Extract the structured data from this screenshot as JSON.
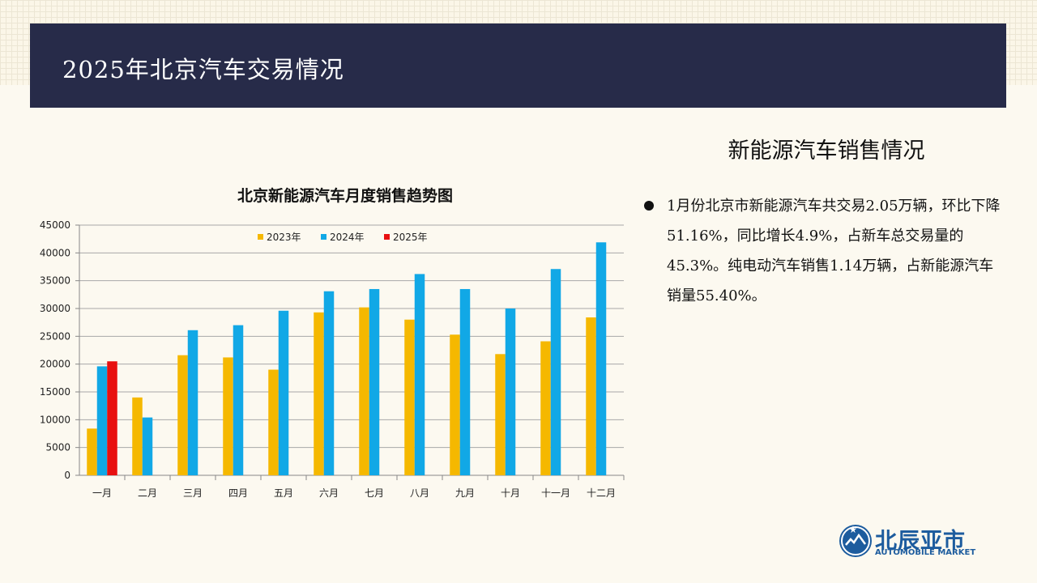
{
  "header": {
    "title": "2025年北京汽车交易情况"
  },
  "section": {
    "title": "新能源汽车销售情况",
    "bullet_text": "1月份北京市新能源汽车共交易2.05万辆，环比下降51.16%，同比增长4.9%，占新车总交易量的45.3%。纯电动汽车销售1.14万辆，占新能源汽车销量55.40%。"
  },
  "logo": {
    "cn": "北辰亚市",
    "en": "AUTOMOBILE MARKET",
    "color": "#1d5c9e"
  },
  "chart_data": {
    "type": "bar",
    "title": "北京新能源汽车月度销售趋势图",
    "categories": [
      "一月",
      "二月",
      "三月",
      "四月",
      "五月",
      "六月",
      "七月",
      "八月",
      "九月",
      "十月",
      "十一月",
      "十二月"
    ],
    "series": [
      {
        "name": "2023年",
        "color": "#f5b800",
        "values": [
          8400,
          14000,
          21600,
          21200,
          19000,
          29300,
          30200,
          28000,
          25300,
          21800,
          24100,
          28400
        ]
      },
      {
        "name": "2024年",
        "color": "#11a8e6",
        "values": [
          19600,
          10400,
          26100,
          27000,
          29600,
          33100,
          33500,
          36200,
          33500,
          30000,
          37100,
          41900
        ]
      },
      {
        "name": "2025年",
        "color": "#e81010",
        "values": [
          20500,
          null,
          null,
          null,
          null,
          null,
          null,
          null,
          null,
          null,
          null,
          null
        ]
      }
    ],
    "ylim": [
      0,
      45000
    ],
    "yticks": [
      0,
      5000,
      10000,
      15000,
      20000,
      25000,
      30000,
      35000,
      40000,
      45000
    ],
    "grid": true,
    "legend": "top"
  }
}
